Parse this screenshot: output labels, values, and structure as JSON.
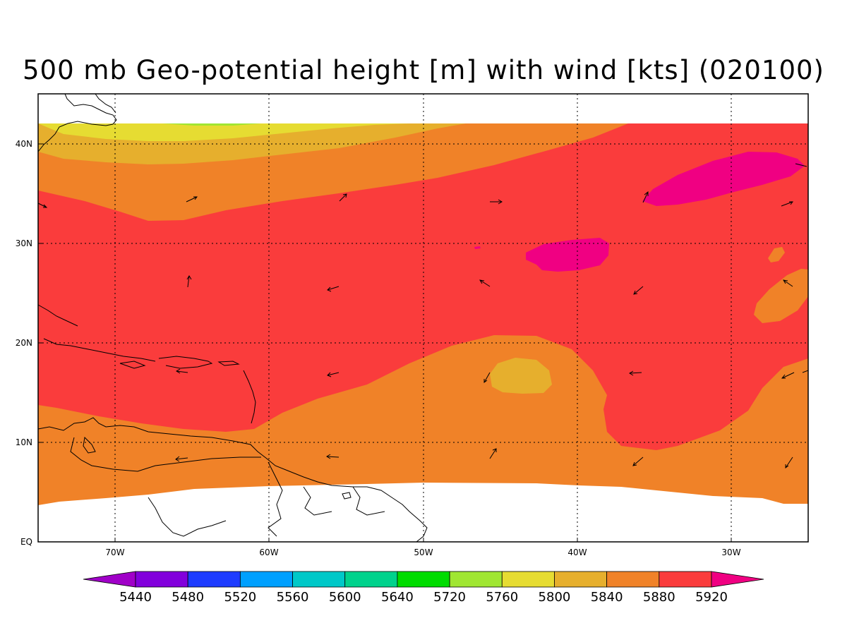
{
  "title": "500 mb Geo-potential height [m] with wind [kts] (020100)",
  "x_ticks": [
    "70W",
    "60W",
    "50W",
    "40W",
    "30W"
  ],
  "y_ticks": [
    "EQ",
    "10N",
    "20N",
    "30N",
    "40N"
  ],
  "colorbar": {
    "colors": [
      "#a000c8",
      "#8200dc",
      "#1e3cff",
      "#00a0ff",
      "#00c8c8",
      "#00d28c",
      "#00dc00",
      "#a0e632",
      "#e6dc32",
      "#e6af2d",
      "#f08228",
      "#fa3c3c",
      "#f00082"
    ],
    "labels": [
      "5440",
      "5480",
      "5520",
      "5560",
      "5600",
      "5640",
      "5720",
      "5760",
      "5800",
      "5840",
      "5880",
      "5920"
    ]
  },
  "contour_colors": {
    "5760": "#a0e632",
    "5800": "#e6dc32",
    "5840": "#e6af2d",
    "5880": "#f08228",
    "5920": "#fa3c3c",
    "5960": "#f00082"
  }
}
